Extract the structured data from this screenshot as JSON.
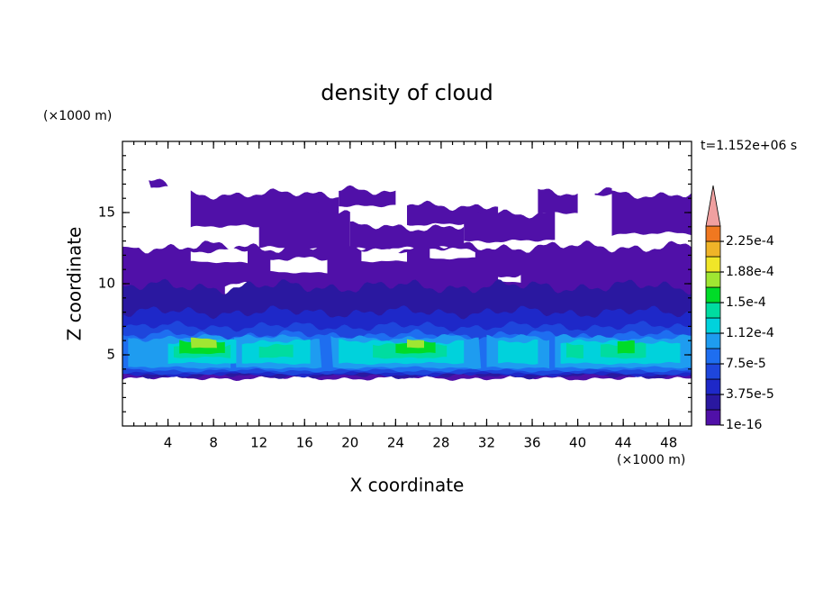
{
  "chart_data": {
    "type": "contour",
    "title": "density of cloud",
    "xlabel": "X coordinate",
    "ylabel": "Z coordinate",
    "x_unit": "(×1000 m)",
    "y_unit": "(×1000 m)",
    "time_label": "t=1.152e+06 s",
    "xlim": [
      0,
      50
    ],
    "ylim": [
      0,
      20
    ],
    "xticks": [
      4,
      8,
      12,
      16,
      20,
      24,
      28,
      32,
      36,
      40,
      44,
      48
    ],
    "yticks": [
      5,
      10,
      15
    ],
    "colorbar_ticks": [
      {
        "value": 1e-16,
        "label": "1e-16"
      },
      {
        "value": 3.75e-05,
        "label": "3.75e-5"
      },
      {
        "value": 7.5e-05,
        "label": "7.5e-5"
      },
      {
        "value": 0.000112,
        "label": "1.12e-4"
      },
      {
        "value": 0.00015,
        "label": "1.5e-4"
      },
      {
        "value": 0.000188,
        "label": "1.88e-4"
      },
      {
        "value": 0.000225,
        "label": "2.25e-4"
      }
    ],
    "colors": [
      "#5010a8",
      "#2a18a0",
      "#1e28c8",
      "#1e46dc",
      "#1e6ef0",
      "#1e9cf0",
      "#00d2dc",
      "#00dca0",
      "#00dc28",
      "#a0e632",
      "#f0e628",
      "#f0b428",
      "#f07820",
      "#f02020"
    ],
    "over_color": "#f0a0a0"
  }
}
